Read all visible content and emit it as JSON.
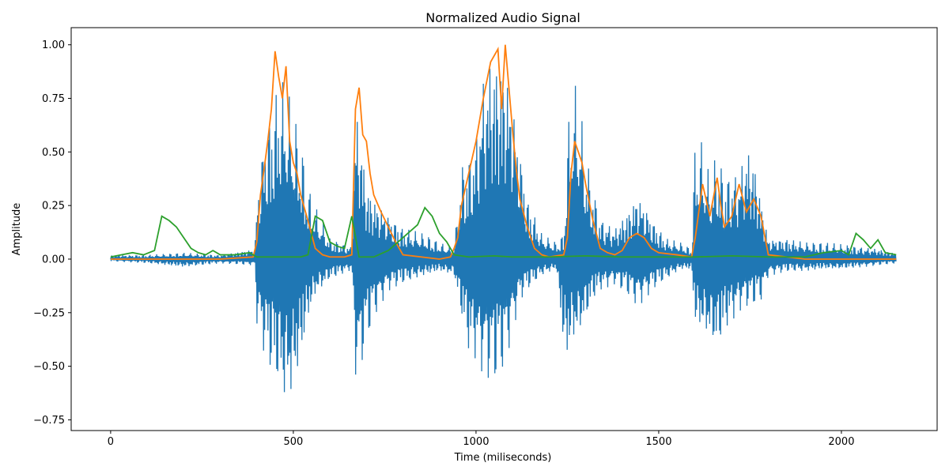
{
  "chart_data": {
    "type": "line",
    "title": "Normalized Audio Signal",
    "xlabel": "Time (miliseconds)",
    "ylabel": "Amplitude",
    "xlim": [
      -108,
      2262
    ],
    "ylim": [
      -0.8,
      1.08
    ],
    "xticks": [
      0,
      500,
      1000,
      1500,
      2000
    ],
    "xtick_labels": [
      "0",
      "500",
      "1000",
      "1500",
      "2000"
    ],
    "yticks": [
      -0.75,
      -0.5,
      -0.25,
      0.0,
      0.25,
      0.5,
      0.75,
      1.0
    ],
    "ytick_labels": [
      "−0.75",
      "−0.50",
      "−0.25",
      "0.00",
      "0.25",
      "0.50",
      "0.75",
      "1.00"
    ],
    "grid": false,
    "legend": "none",
    "series": [
      {
        "color": "#1f77b4",
        "kind": "waveform",
        "x": [
          0,
          100,
          200,
          300,
          395,
          400,
          420,
          440,
          460,
          480,
          500,
          520,
          540,
          560,
          600,
          660,
          670,
          680,
          700,
          720,
          760,
          800,
          860,
          900,
          940,
          960,
          980,
          1000,
          1020,
          1040,
          1060,
          1080,
          1100,
          1120,
          1140,
          1180,
          1220,
          1240,
          1250,
          1260,
          1280,
          1300,
          1320,
          1340,
          1380,
          1420,
          1440,
          1460,
          1480,
          1520,
          1560,
          1590,
          1600,
          1620,
          1640,
          1660,
          1680,
          1700,
          1720,
          1740,
          1760,
          1780,
          1800,
          1850,
          1900,
          1950,
          2000,
          2050,
          2100,
          2150
        ],
        "upper": [
          0.02,
          0.02,
          0.03,
          0.02,
          0.05,
          0.3,
          0.62,
          0.72,
          0.86,
          0.83,
          0.7,
          0.58,
          0.35,
          0.25,
          0.1,
          0.06,
          0.73,
          0.69,
          0.36,
          0.3,
          0.22,
          0.15,
          0.12,
          0.08,
          0.05,
          0.45,
          0.5,
          0.6,
          0.9,
          1.0,
          0.99,
          0.97,
          0.8,
          0.55,
          0.3,
          0.12,
          0.08,
          0.12,
          0.55,
          0.84,
          0.8,
          0.5,
          0.35,
          0.2,
          0.15,
          0.25,
          0.32,
          0.28,
          0.2,
          0.1,
          0.08,
          0.05,
          0.58,
          0.55,
          0.38,
          0.52,
          0.4,
          0.42,
          0.42,
          0.55,
          0.5,
          0.3,
          0.1,
          0.1,
          0.08,
          0.08,
          0.07,
          0.06,
          0.05,
          0.03
        ],
        "lower": [
          -0.01,
          -0.02,
          -0.04,
          -0.02,
          -0.03,
          -0.3,
          -0.45,
          -0.55,
          -0.62,
          -0.72,
          -0.65,
          -0.5,
          -0.3,
          -0.18,
          -0.1,
          -0.05,
          -0.55,
          -0.57,
          -0.4,
          -0.28,
          -0.15,
          -0.12,
          -0.08,
          -0.06,
          -0.08,
          -0.28,
          -0.45,
          -0.48,
          -0.55,
          -0.59,
          -0.58,
          -0.5,
          -0.35,
          -0.2,
          -0.15,
          -0.08,
          -0.05,
          -0.45,
          -0.5,
          -0.42,
          -0.38,
          -0.3,
          -0.2,
          -0.15,
          -0.12,
          -0.18,
          -0.22,
          -0.2,
          -0.15,
          -0.1,
          -0.05,
          -0.05,
          -0.33,
          -0.35,
          -0.4,
          -0.45,
          -0.35,
          -0.3,
          -0.25,
          -0.23,
          -0.22,
          -0.2,
          -0.08,
          -0.06,
          -0.06,
          -0.05,
          -0.05,
          -0.04,
          -0.03,
          -0.02
        ]
      },
      {
        "color": "#ff7f0e",
        "kind": "line",
        "x": [
          0,
          100,
          200,
          300,
          390,
          400,
          410,
          420,
          430,
          440,
          450,
          460,
          470,
          480,
          490,
          500,
          510,
          520,
          540,
          560,
          580,
          600,
          640,
          660,
          670,
          680,
          690,
          700,
          710,
          720,
          740,
          760,
          780,
          800,
          850,
          900,
          930,
          940,
          950,
          960,
          980,
          1000,
          1020,
          1040,
          1060,
          1070,
          1080,
          1090,
          1100,
          1110,
          1120,
          1140,
          1160,
          1180,
          1200,
          1240,
          1250,
          1260,
          1270,
          1280,
          1290,
          1300,
          1320,
          1340,
          1360,
          1380,
          1400,
          1420,
          1440,
          1460,
          1480,
          1500,
          1550,
          1590,
          1600,
          1620,
          1640,
          1660,
          1670,
          1680,
          1700,
          1720,
          1740,
          1760,
          1780,
          1800,
          1850,
          1900,
          1950,
          2000,
          2050,
          2100,
          2150
        ],
        "y": [
          0.0,
          0.0,
          0.0,
          0.0,
          0.01,
          0.08,
          0.3,
          0.42,
          0.55,
          0.7,
          0.97,
          0.85,
          0.75,
          0.9,
          0.55,
          0.45,
          0.4,
          0.3,
          0.18,
          0.05,
          0.02,
          0.01,
          0.01,
          0.02,
          0.7,
          0.8,
          0.58,
          0.55,
          0.4,
          0.3,
          0.22,
          0.15,
          0.08,
          0.02,
          0.01,
          0.0,
          0.01,
          0.05,
          0.1,
          0.25,
          0.4,
          0.55,
          0.75,
          0.92,
          0.98,
          0.7,
          1.0,
          0.8,
          0.6,
          0.42,
          0.28,
          0.15,
          0.05,
          0.02,
          0.01,
          0.02,
          0.1,
          0.4,
          0.55,
          0.5,
          0.45,
          0.35,
          0.18,
          0.05,
          0.03,
          0.02,
          0.04,
          0.1,
          0.12,
          0.1,
          0.05,
          0.03,
          0.02,
          0.01,
          0.1,
          0.35,
          0.2,
          0.38,
          0.25,
          0.15,
          0.2,
          0.35,
          0.22,
          0.28,
          0.2,
          0.02,
          0.01,
          0.0,
          0.0,
          0.0,
          0.0,
          0.0,
          0.0
        ]
      },
      {
        "color": "#2ca02c",
        "kind": "line",
        "x": [
          0,
          30,
          60,
          90,
          120,
          140,
          160,
          180,
          200,
          220,
          240,
          260,
          280,
          300,
          340,
          380,
          400,
          440,
          480,
          520,
          540,
          560,
          580,
          600,
          620,
          640,
          660,
          680,
          720,
          760,
          800,
          840,
          860,
          880,
          900,
          920,
          940,
          980,
          1050,
          1100,
          1200,
          1300,
          1400,
          1500,
          1600,
          1700,
          1800,
          1900,
          1950,
          2000,
          2020,
          2040,
          2060,
          2080,
          2100,
          2120,
          2150
        ],
        "y": [
          0.01,
          0.02,
          0.03,
          0.02,
          0.04,
          0.2,
          0.18,
          0.15,
          0.1,
          0.05,
          0.03,
          0.02,
          0.04,
          0.02,
          0.02,
          0.03,
          0.01,
          0.01,
          0.01,
          0.01,
          0.02,
          0.2,
          0.18,
          0.08,
          0.06,
          0.05,
          0.2,
          0.01,
          0.01,
          0.04,
          0.1,
          0.16,
          0.24,
          0.2,
          0.12,
          0.08,
          0.02,
          0.01,
          0.015,
          0.01,
          0.01,
          0.015,
          0.01,
          0.01,
          0.01,
          0.015,
          0.01,
          0.01,
          0.03,
          0.04,
          0.02,
          0.12,
          0.09,
          0.05,
          0.09,
          0.03,
          0.02
        ]
      }
    ]
  }
}
